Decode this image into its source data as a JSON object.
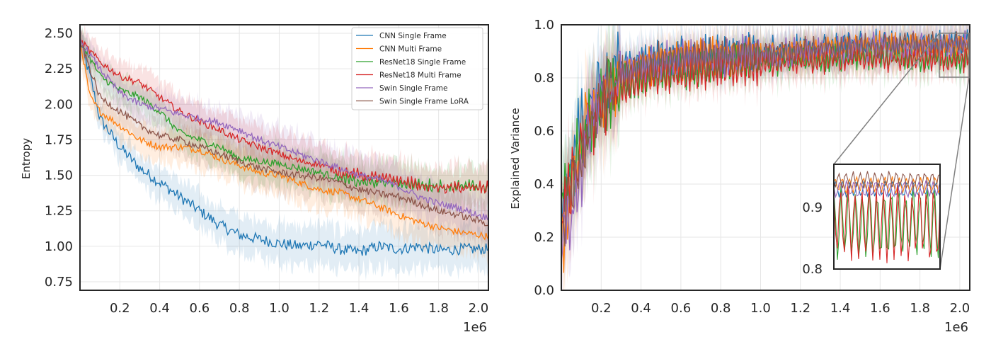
{
  "chart_data": [
    {
      "type": "line",
      "title": "",
      "xlabel": "",
      "ylabel": "Entropy",
      "x_offset_label": "1e6",
      "xlim": [
        0.0,
        2.05
      ],
      "ylim": [
        0.69,
        2.56
      ],
      "xticks": [
        0.2,
        0.4,
        0.6,
        0.8,
        1.0,
        1.2,
        1.4,
        1.6,
        1.8,
        2.0
      ],
      "xtick_labels": [
        "0.2",
        "0.4",
        "0.6",
        "0.8",
        "1.0",
        "1.2",
        "1.4",
        "1.6",
        "1.8",
        "2.0"
      ],
      "yticks": [
        0.75,
        1.0,
        1.25,
        1.5,
        1.75,
        2.0,
        2.25,
        2.5
      ],
      "ytick_labels": [
        "0.75",
        "1.00",
        "1.25",
        "1.50",
        "1.75",
        "2.00",
        "2.25",
        "2.50"
      ],
      "grid": true,
      "legend_position": "top-right",
      "series": [
        {
          "name": "CNN Single Frame",
          "color": "#1f77b4",
          "points": [
            [
              0.0,
              2.45
            ],
            [
              0.05,
              2.2
            ],
            [
              0.1,
              1.9
            ],
            [
              0.15,
              1.8
            ],
            [
              0.2,
              1.7
            ],
            [
              0.3,
              1.55
            ],
            [
              0.4,
              1.45
            ],
            [
              0.5,
              1.35
            ],
            [
              0.6,
              1.25
            ],
            [
              0.7,
              1.15
            ],
            [
              0.8,
              1.08
            ],
            [
              0.9,
              1.05
            ],
            [
              1.0,
              1.02
            ],
            [
              1.1,
              1.0
            ],
            [
              1.2,
              1.02
            ],
            [
              1.3,
              0.98
            ],
            [
              1.4,
              0.96
            ],
            [
              1.5,
              1.0
            ],
            [
              1.6,
              0.98
            ],
            [
              1.7,
              1.0
            ],
            [
              1.8,
              0.97
            ],
            [
              1.9,
              0.98
            ],
            [
              2.0,
              0.98
            ],
            [
              2.05,
              0.98
            ]
          ]
        },
        {
          "name": "CNN Multi Frame",
          "color": "#ff7f0e",
          "points": [
            [
              0.0,
              2.45
            ],
            [
              0.05,
              2.05
            ],
            [
              0.1,
              1.95
            ],
            [
              0.2,
              1.85
            ],
            [
              0.3,
              1.75
            ],
            [
              0.4,
              1.7
            ],
            [
              0.5,
              1.7
            ],
            [
              0.6,
              1.68
            ],
            [
              0.7,
              1.62
            ],
            [
              0.8,
              1.57
            ],
            [
              0.9,
              1.52
            ],
            [
              1.0,
              1.5
            ],
            [
              1.1,
              1.45
            ],
            [
              1.2,
              1.4
            ],
            [
              1.3,
              1.38
            ],
            [
              1.4,
              1.33
            ],
            [
              1.5,
              1.28
            ],
            [
              1.6,
              1.22
            ],
            [
              1.7,
              1.17
            ],
            [
              1.8,
              1.13
            ],
            [
              1.9,
              1.1
            ],
            [
              2.0,
              1.08
            ],
            [
              2.05,
              1.07
            ]
          ]
        },
        {
          "name": "ResNet18 Single Frame",
          "color": "#2ca02c",
          "points": [
            [
              0.0,
              2.45
            ],
            [
              0.1,
              2.2
            ],
            [
              0.2,
              2.1
            ],
            [
              0.3,
              2.05
            ],
            [
              0.4,
              1.95
            ],
            [
              0.5,
              1.8
            ],
            [
              0.6,
              1.75
            ],
            [
              0.7,
              1.7
            ],
            [
              0.8,
              1.62
            ],
            [
              0.9,
              1.6
            ],
            [
              1.0,
              1.58
            ],
            [
              1.1,
              1.55
            ],
            [
              1.2,
              1.52
            ],
            [
              1.3,
              1.48
            ],
            [
              1.4,
              1.45
            ],
            [
              1.5,
              1.45
            ],
            [
              1.6,
              1.45
            ],
            [
              1.7,
              1.43
            ],
            [
              1.8,
              1.42
            ],
            [
              1.9,
              1.42
            ],
            [
              2.0,
              1.42
            ],
            [
              2.05,
              1.41
            ]
          ]
        },
        {
          "name": "ResNet18 Multi Frame",
          "color": "#d62728",
          "points": [
            [
              0.0,
              2.45
            ],
            [
              0.1,
              2.3
            ],
            [
              0.2,
              2.2
            ],
            [
              0.3,
              2.15
            ],
            [
              0.4,
              2.05
            ],
            [
              0.5,
              1.95
            ],
            [
              0.6,
              1.88
            ],
            [
              0.7,
              1.82
            ],
            [
              0.8,
              1.75
            ],
            [
              0.9,
              1.7
            ],
            [
              1.0,
              1.65
            ],
            [
              1.1,
              1.6
            ],
            [
              1.2,
              1.58
            ],
            [
              1.3,
              1.52
            ],
            [
              1.4,
              1.5
            ],
            [
              1.5,
              1.48
            ],
            [
              1.6,
              1.46
            ],
            [
              1.7,
              1.43
            ],
            [
              1.8,
              1.41
            ],
            [
              1.9,
              1.41
            ],
            [
              2.0,
              1.41
            ],
            [
              2.05,
              1.41
            ]
          ]
        },
        {
          "name": "Swin Single Frame",
          "color": "#9467bd",
          "points": [
            [
              0.0,
              2.45
            ],
            [
              0.1,
              2.25
            ],
            [
              0.2,
              2.08
            ],
            [
              0.3,
              2.0
            ],
            [
              0.4,
              1.97
            ],
            [
              0.5,
              1.93
            ],
            [
              0.6,
              1.9
            ],
            [
              0.7,
              1.87
            ],
            [
              0.8,
              1.82
            ],
            [
              0.9,
              1.75
            ],
            [
              1.0,
              1.7
            ],
            [
              1.1,
              1.65
            ],
            [
              1.2,
              1.6
            ],
            [
              1.3,
              1.55
            ],
            [
              1.4,
              1.5
            ],
            [
              1.5,
              1.47
            ],
            [
              1.6,
              1.42
            ],
            [
              1.7,
              1.35
            ],
            [
              1.8,
              1.3
            ],
            [
              1.9,
              1.27
            ],
            [
              2.0,
              1.22
            ],
            [
              2.05,
              1.2
            ]
          ]
        },
        {
          "name": "Swin Single Frame LoRA",
          "color": "#8c564b",
          "points": [
            [
              0.0,
              2.45
            ],
            [
              0.1,
              2.05
            ],
            [
              0.2,
              1.95
            ],
            [
              0.3,
              1.85
            ],
            [
              0.4,
              1.78
            ],
            [
              0.5,
              1.75
            ],
            [
              0.6,
              1.7
            ],
            [
              0.7,
              1.65
            ],
            [
              0.8,
              1.6
            ],
            [
              0.9,
              1.55
            ],
            [
              1.0,
              1.52
            ],
            [
              1.1,
              1.5
            ],
            [
              1.2,
              1.48
            ],
            [
              1.3,
              1.45
            ],
            [
              1.4,
              1.4
            ],
            [
              1.5,
              1.37
            ],
            [
              1.6,
              1.35
            ],
            [
              1.7,
              1.3
            ],
            [
              1.8,
              1.25
            ],
            [
              1.9,
              1.22
            ],
            [
              2.0,
              1.18
            ],
            [
              2.05,
              1.16
            ]
          ]
        }
      ]
    },
    {
      "type": "line",
      "title": "",
      "xlabel": "",
      "ylabel": "Explained Variance",
      "x_offset_label": "1e6",
      "xlim": [
        0.0,
        2.05
      ],
      "ylim": [
        0.0,
        1.0
      ],
      "xticks": [
        0.2,
        0.4,
        0.6,
        0.8,
        1.0,
        1.2,
        1.4,
        1.6,
        1.8,
        2.0
      ],
      "xtick_labels": [
        "0.2",
        "0.4",
        "0.6",
        "0.8",
        "1.0",
        "1.2",
        "1.4",
        "1.6",
        "1.8",
        "2.0"
      ],
      "yticks": [
        0.0,
        0.2,
        0.4,
        0.6,
        0.8,
        1.0
      ],
      "ytick_labels": [
        "0.0",
        "0.2",
        "0.4",
        "0.6",
        "0.8",
        "1.0"
      ],
      "grid": true,
      "inset": {
        "xlim": [
          1.9,
          2.05
        ],
        "ylim": [
          0.8,
          0.97
        ],
        "yticks": [
          0.8,
          0.9
        ],
        "ytick_labels": [
          "0.8",
          "0.9"
        ],
        "position": "lower-right"
      },
      "series": [
        {
          "name": "CNN Single Frame",
          "color": "#1f77b4",
          "points": [
            [
              0.0,
              0.3
            ],
            [
              0.05,
              0.5
            ],
            [
              0.1,
              0.62
            ],
            [
              0.15,
              0.72
            ],
            [
              0.2,
              0.8
            ],
            [
              0.3,
              0.84
            ],
            [
              0.4,
              0.86
            ],
            [
              0.5,
              0.87
            ],
            [
              0.6,
              0.88
            ],
            [
              0.8,
              0.89
            ],
            [
              1.0,
              0.9
            ],
            [
              1.2,
              0.91
            ],
            [
              1.4,
              0.92
            ],
            [
              1.6,
              0.93
            ],
            [
              1.8,
              0.93
            ],
            [
              2.0,
              0.93
            ],
            [
              2.05,
              0.93
            ]
          ]
        },
        {
          "name": "CNN Multi Frame",
          "color": "#ff7f0e",
          "points": [
            [
              0.0,
              0.15
            ],
            [
              0.05,
              0.4
            ],
            [
              0.1,
              0.55
            ],
            [
              0.15,
              0.68
            ],
            [
              0.2,
              0.75
            ],
            [
              0.3,
              0.8
            ],
            [
              0.4,
              0.83
            ],
            [
              0.5,
              0.85
            ],
            [
              0.6,
              0.86
            ],
            [
              0.8,
              0.88
            ],
            [
              1.0,
              0.89
            ],
            [
              1.2,
              0.9
            ],
            [
              1.4,
              0.91
            ],
            [
              1.6,
              0.92
            ],
            [
              1.8,
              0.92
            ],
            [
              2.0,
              0.92
            ],
            [
              2.05,
              0.92
            ]
          ]
        },
        {
          "name": "ResNet18 Single Frame",
          "color": "#2ca02c",
          "points": [
            [
              0.0,
              0.35
            ],
            [
              0.05,
              0.45
            ],
            [
              0.1,
              0.55
            ],
            [
              0.15,
              0.65
            ],
            [
              0.2,
              0.72
            ],
            [
              0.3,
              0.78
            ],
            [
              0.4,
              0.8
            ],
            [
              0.5,
              0.82
            ],
            [
              0.6,
              0.83
            ],
            [
              0.8,
              0.85
            ],
            [
              1.0,
              0.86
            ],
            [
              1.2,
              0.87
            ],
            [
              1.4,
              0.88
            ],
            [
              1.6,
              0.88
            ],
            [
              1.8,
              0.87
            ],
            [
              2.0,
              0.87
            ],
            [
              2.05,
              0.87
            ]
          ]
        },
        {
          "name": "ResNet18 Multi Frame",
          "color": "#d62728",
          "points": [
            [
              0.0,
              0.25
            ],
            [
              0.05,
              0.4
            ],
            [
              0.1,
              0.52
            ],
            [
              0.15,
              0.62
            ],
            [
              0.2,
              0.7
            ],
            [
              0.3,
              0.76
            ],
            [
              0.4,
              0.79
            ],
            [
              0.5,
              0.81
            ],
            [
              0.6,
              0.82
            ],
            [
              0.8,
              0.84
            ],
            [
              1.0,
              0.85
            ],
            [
              1.2,
              0.86
            ],
            [
              1.4,
              0.87
            ],
            [
              1.6,
              0.87
            ],
            [
              1.8,
              0.87
            ],
            [
              2.0,
              0.87
            ],
            [
              2.05,
              0.87
            ]
          ]
        },
        {
          "name": "Swin Single Frame",
          "color": "#9467bd",
          "points": [
            [
              0.0,
              0.2
            ],
            [
              0.05,
              0.3
            ],
            [
              0.1,
              0.45
            ],
            [
              0.15,
              0.65
            ],
            [
              0.2,
              0.75
            ],
            [
              0.3,
              0.82
            ],
            [
              0.4,
              0.85
            ],
            [
              0.5,
              0.86
            ],
            [
              0.6,
              0.87
            ],
            [
              0.8,
              0.88
            ],
            [
              1.0,
              0.89
            ],
            [
              1.2,
              0.9
            ],
            [
              1.4,
              0.91
            ],
            [
              1.6,
              0.92
            ],
            [
              1.8,
              0.92
            ],
            [
              2.0,
              0.93
            ],
            [
              2.05,
              0.93
            ]
          ]
        },
        {
          "name": "Swin Single Frame LoRA",
          "color": "#8c564b",
          "points": [
            [
              0.0,
              0.25
            ],
            [
              0.05,
              0.35
            ],
            [
              0.1,
              0.5
            ],
            [
              0.15,
              0.62
            ],
            [
              0.2,
              0.72
            ],
            [
              0.3,
              0.8
            ],
            [
              0.4,
              0.84
            ],
            [
              0.5,
              0.86
            ],
            [
              0.6,
              0.87
            ],
            [
              0.8,
              0.88
            ],
            [
              1.0,
              0.89
            ],
            [
              1.2,
              0.9
            ],
            [
              1.4,
              0.91
            ],
            [
              1.6,
              0.92
            ],
            [
              1.8,
              0.93
            ],
            [
              2.0,
              0.93
            ],
            [
              2.05,
              0.93
            ]
          ]
        }
      ]
    }
  ]
}
